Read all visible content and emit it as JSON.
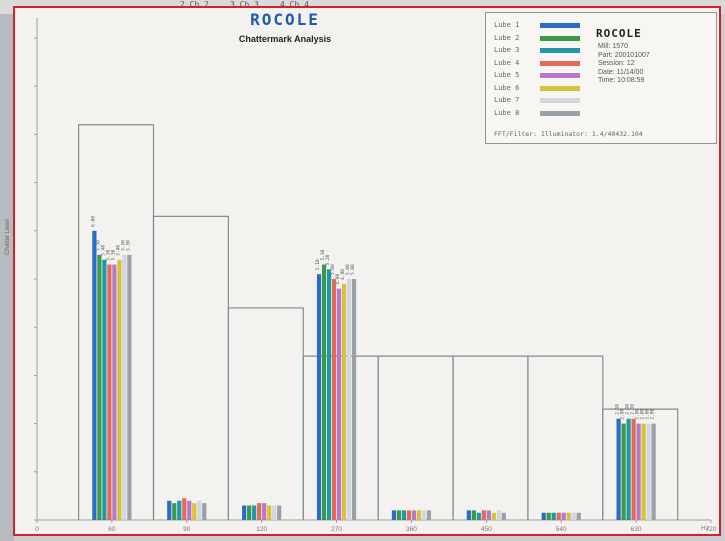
{
  "top_strip": [
    "2 Ch 2",
    "3 Ch 3",
    "4 Ch 4"
  ],
  "header": {
    "logo_text": "ROCOLE",
    "title": "Chattermark Analysis"
  },
  "legend": {
    "brand": "ROCOLE",
    "info_lines": [
      "Mill: 1570",
      "Part: 200101007",
      "Session: 12",
      "Date: 11/14/00",
      "Time: 10:08:59"
    ],
    "footer": "FFT/Filter: Illuminator: 1.4/40432.104"
  },
  "colors": {
    "frame_border": "#d61f26",
    "chart_background": "#f3f2ee",
    "logo_blue": "#1d5bb5",
    "envelope_line": "#7d8f99"
  },
  "chart_data": {
    "type": "bar",
    "title": "Chattermark Analysis",
    "xlabel": "",
    "ylabel": "Chatter Level",
    "x_ticks": [
      "0",
      "60",
      "90",
      "120",
      "270",
      "360",
      "450",
      "540",
      "630",
      "720"
    ],
    "x_unit": "Hz",
    "ylim": [
      0,
      10
    ],
    "grid": false,
    "legend_position": "top-right",
    "series": [
      {
        "name": "Lube 1",
        "color": "#2b6cc4"
      },
      {
        "name": "Lube 2",
        "color": "#3a9a4a"
      },
      {
        "name": "Lube 3",
        "color": "#1d9aa5"
      },
      {
        "name": "Lube 4",
        "color": "#e36a5a"
      },
      {
        "name": "Lube 5",
        "color": "#b47ac9"
      },
      {
        "name": "Lube 6",
        "color": "#d9c23a"
      },
      {
        "name": "Lube 7",
        "color": "#cfd7e0"
      },
      {
        "name": "Lube 8",
        "color": "#9aa0a6"
      }
    ],
    "groups": [
      {
        "x_center": 45,
        "values": [
          6.0,
          5.5,
          5.4,
          5.3,
          5.3,
          5.4,
          5.5,
          5.5
        ]
      },
      {
        "x_center": 90,
        "values": [
          0.4,
          0.35,
          0.4,
          0.45,
          0.4,
          0.35,
          0.4,
          0.35
        ]
      },
      {
        "x_center": 135,
        "values": [
          0.3,
          0.3,
          0.3,
          0.35,
          0.35,
          0.3,
          0.3,
          0.3
        ]
      },
      {
        "x_center": 180,
        "values": [
          5.1,
          5.3,
          5.2,
          5.0,
          4.8,
          4.9,
          5.0,
          5.0
        ]
      },
      {
        "x_center": 225,
        "values": [
          0.2,
          0.2,
          0.2,
          0.2,
          0.2,
          0.2,
          0.2,
          0.2
        ]
      },
      {
        "x_center": 270,
        "values": [
          0.2,
          0.2,
          0.15,
          0.2,
          0.2,
          0.15,
          0.2,
          0.15
        ]
      },
      {
        "x_center": 315,
        "values": [
          0.15,
          0.15,
          0.15,
          0.15,
          0.15,
          0.15,
          0.15,
          0.15
        ]
      },
      {
        "x_center": 360,
        "values": [
          2.1,
          2.0,
          2.1,
          2.1,
          2.0,
          2.0,
          2.0,
          2.0
        ]
      }
    ],
    "envelope": [
      {
        "x_start": 25,
        "x_end": 70,
        "level": 8.2
      },
      {
        "x_start": 70,
        "x_end": 115,
        "level": 6.3
      },
      {
        "x_start": 115,
        "x_end": 160,
        "level": 4.4
      },
      {
        "x_start": 160,
        "x_end": 205,
        "level": 3.4
      },
      {
        "x_start": 205,
        "x_end": 250,
        "level": 3.4
      },
      {
        "x_start": 250,
        "x_end": 295,
        "level": 3.4
      },
      {
        "x_start": 295,
        "x_end": 340,
        "level": 3.4
      },
      {
        "x_start": 340,
        "x_end": 385,
        "level": 2.3
      }
    ]
  }
}
